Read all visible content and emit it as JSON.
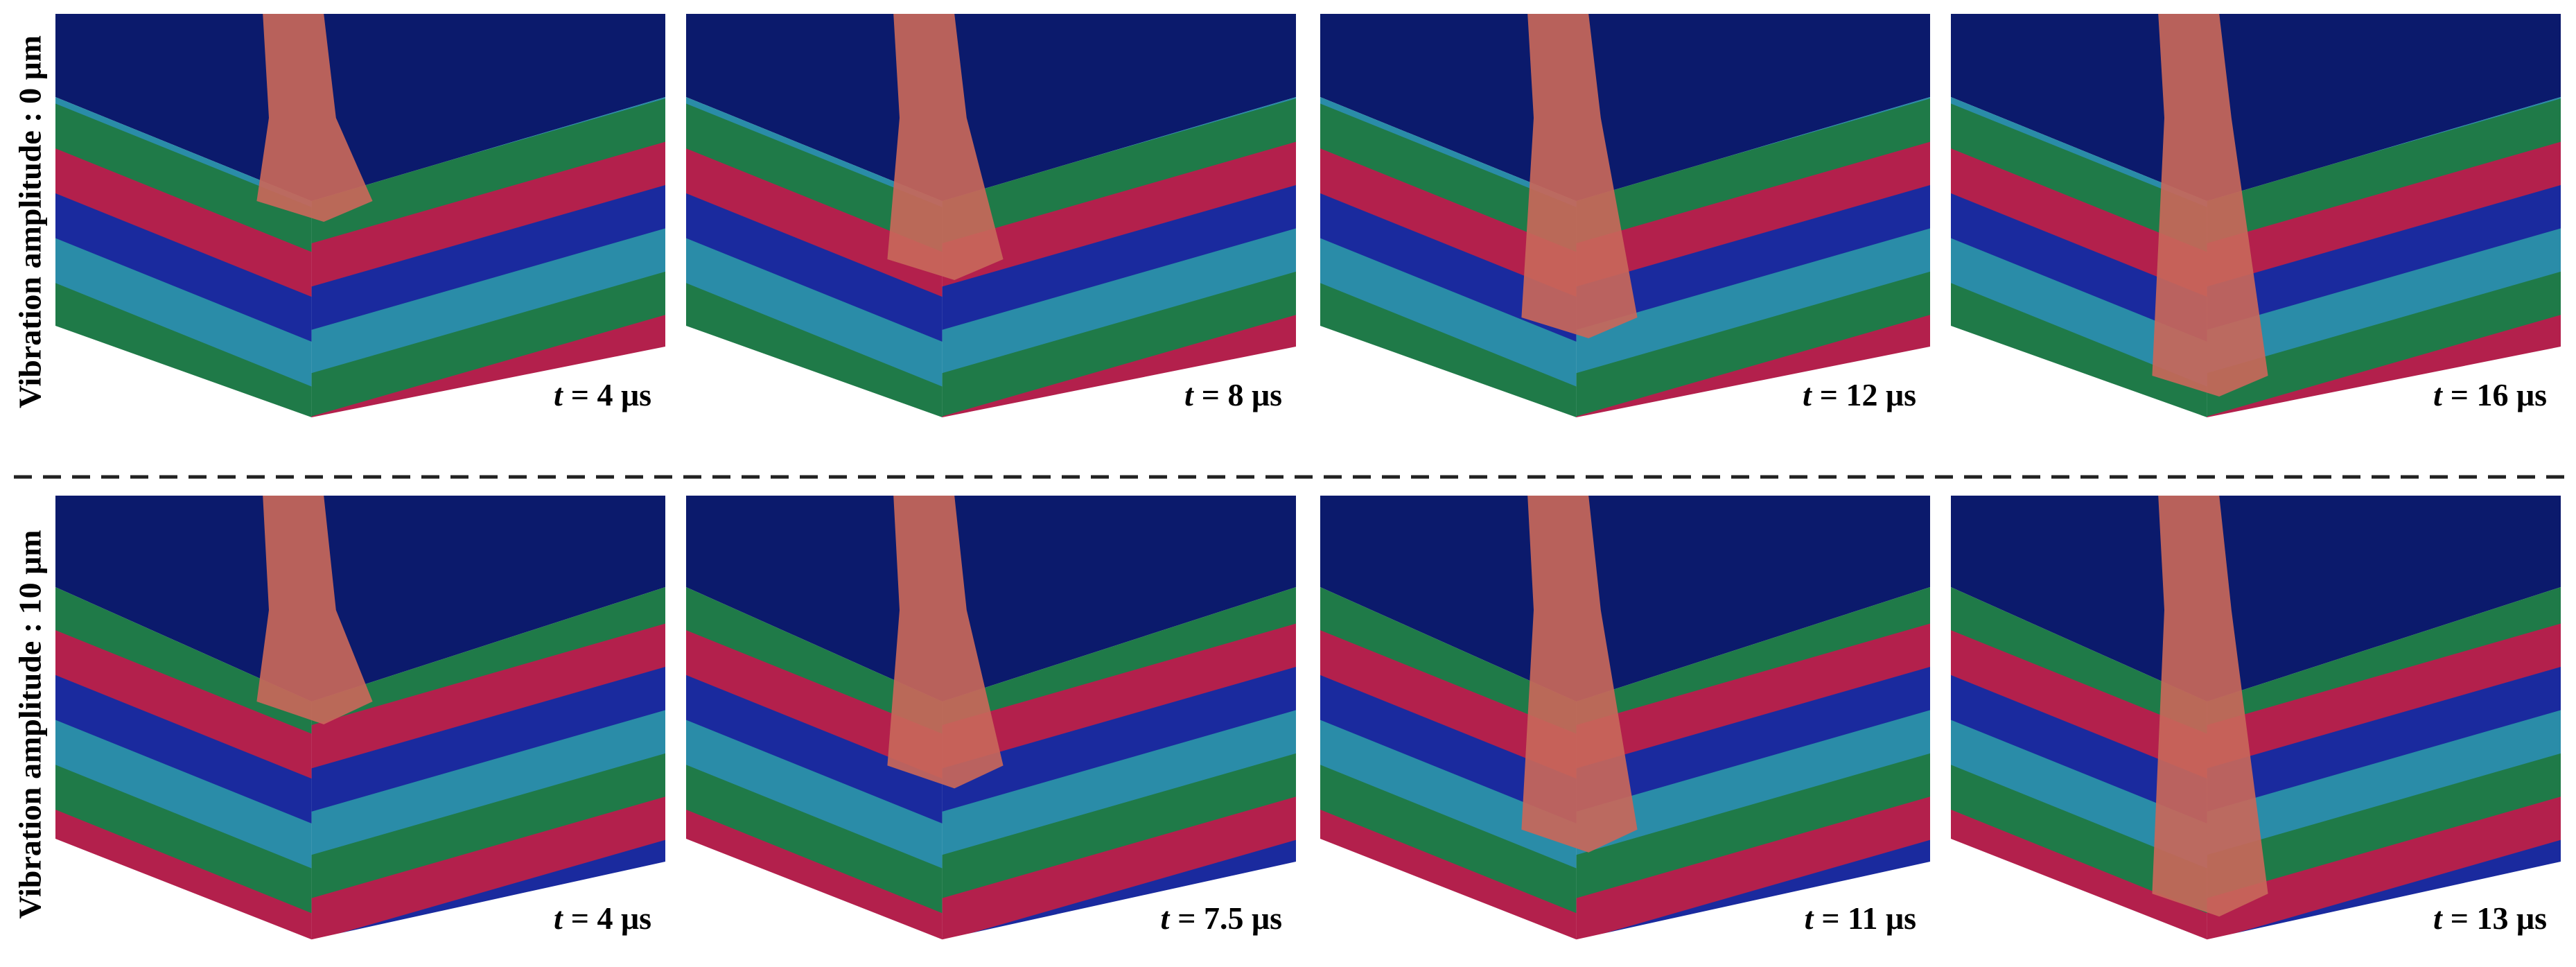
{
  "rows": [
    {
      "label": "Vibration amplitude : 0 μm",
      "panels": [
        {
          "symbol": "t",
          "time": "= 4 μs"
        },
        {
          "symbol": "t",
          "time": "= 8 μs"
        },
        {
          "symbol": "t",
          "time": "= 12 μs"
        },
        {
          "symbol": "t",
          "time": "= 16 μs"
        }
      ]
    },
    {
      "label": "Vibration amplitude : 10 μm",
      "panels": [
        {
          "symbol": "t",
          "time": "= 4 μs"
        },
        {
          "symbol": "t",
          "time": "= 7.5 μs"
        },
        {
          "symbol": "t",
          "time": "= 11 μs"
        },
        {
          "symbol": "t",
          "time": "= 13 μs"
        }
      ]
    }
  ]
}
